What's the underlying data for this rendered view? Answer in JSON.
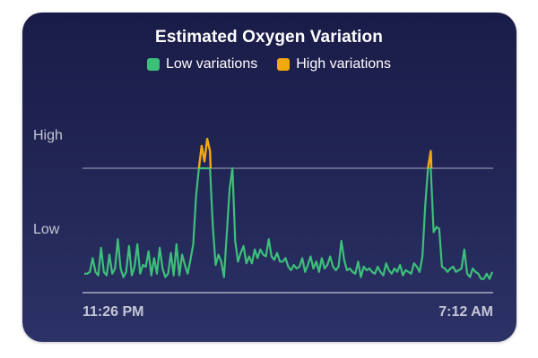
{
  "chart_data": {
    "type": "line",
    "title": "Estimated Oxygen Variation",
    "legend": [
      {
        "name": "Low variations",
        "color": "#3dc07a"
      },
      {
        "name": "High variations",
        "color": "#f2a80f"
      }
    ],
    "y_levels": {
      "high_label": "High",
      "low_label": "Low",
      "threshold": 0.72
    },
    "x_start_label": "11:26 PM",
    "x_end_label": "7:12 AM",
    "ylim": [
      0,
      1
    ],
    "grid": false,
    "series": [
      {
        "name": "Low variations",
        "values": [
          0.11,
          0.11,
          0.12,
          0.2,
          0.12,
          0.1,
          0.26,
          0.12,
          0.1,
          0.22,
          0.11,
          0.14,
          0.31,
          0.14,
          0.09,
          0.12,
          0.27,
          0.1,
          0.15,
          0.28,
          0.11,
          0.16,
          0.15,
          0.24,
          0.1,
          0.2,
          0.11,
          0.26,
          0.14,
          0.09,
          0.11,
          0.23,
          0.1,
          0.28,
          0.1,
          0.22,
          0.16,
          0.11,
          0.19,
          0.28,
          0.56,
          0.72,
          0.85,
          0.76,
          0.89,
          0.82,
          0.38,
          0.16,
          0.22,
          0.18,
          0.09,
          0.34,
          0.6,
          0.72,
          0.3,
          0.18,
          0.23,
          0.27,
          0.17,
          0.21,
          0.17,
          0.25,
          0.2,
          0.25,
          0.22,
          0.21,
          0.31,
          0.21,
          0.19,
          0.23,
          0.18,
          0.18,
          0.2,
          0.15,
          0.13,
          0.16,
          0.14,
          0.15,
          0.2,
          0.12,
          0.16,
          0.21,
          0.14,
          0.18,
          0.12,
          0.2,
          0.14,
          0.16,
          0.21,
          0.15,
          0.13,
          0.15,
          0.3,
          0.19,
          0.13,
          0.14,
          0.12,
          0.11,
          0.18,
          0.09,
          0.15,
          0.13,
          0.14,
          0.12,
          0.11,
          0.15,
          0.12,
          0.1,
          0.17,
          0.13,
          0.11,
          0.14,
          0.12,
          0.16,
          0.1,
          0.13,
          0.12,
          0.11,
          0.17,
          0.15,
          0.12,
          0.21,
          0.5,
          0.72,
          0.82,
          0.35,
          0.38,
          0.37,
          0.15,
          0.14,
          0.12,
          0.14,
          0.15,
          0.12,
          0.13,
          0.14,
          0.25,
          0.11,
          0.09,
          0.14,
          0.12,
          0.11,
          0.08,
          0.08,
          0.11,
          0.08,
          0.12
        ]
      },
      {
        "name": "High variations",
        "ranges": [
          [
            0.72,
            0.89
          ],
          [
            0.72,
            0.72
          ],
          [
            0.72,
            0.82
          ]
        ]
      }
    ]
  }
}
